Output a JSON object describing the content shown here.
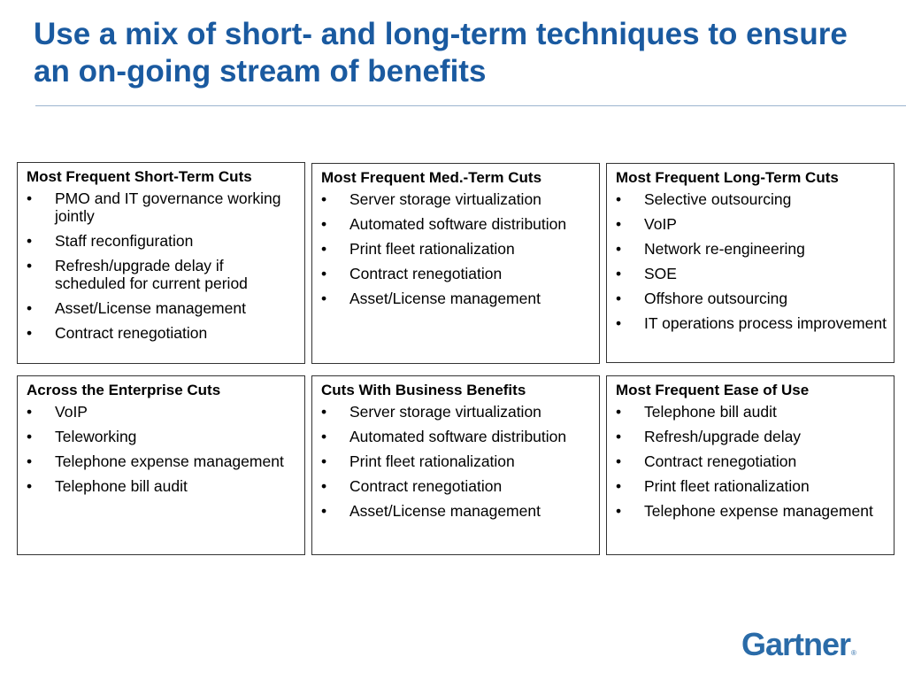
{
  "title": "Use a mix of short- and long-term techniques to ensure an on-going stream of benefits",
  "boxes": [
    {
      "heading": "Most Frequent Short-Term Cuts",
      "items": [
        "PMO and IT governance working jointly",
        "Staff reconfiguration",
        "Refresh/upgrade delay if scheduled for current period",
        "Asset/License management",
        "Contract renegotiation"
      ]
    },
    {
      "heading": "Most Frequent Med.-Term Cuts",
      "items": [
        "Server storage virtualization",
        "Automated software distribution",
        "Print fleet rationalization",
        "Contract renegotiation",
        "Asset/License management"
      ]
    },
    {
      "heading": "Most Frequent Long-Term Cuts",
      "items": [
        "Selective outsourcing",
        "VoIP",
        "Network re-engineering",
        "SOE",
        "Offshore outsourcing",
        "IT operations process improvement"
      ]
    },
    {
      "heading": "Across the Enterprise Cuts",
      "items": [
        "VoIP",
        "Teleworking",
        "Telephone expense management",
        "Telephone bill audit"
      ]
    },
    {
      "heading": "Cuts With Business Benefits",
      "items": [
        "Server storage virtualization",
        "Automated software distribution",
        "Print fleet rationalization",
        "Contract renegotiation",
        "Asset/License management"
      ]
    },
    {
      "heading": "Most Frequent Ease of Use",
      "items": [
        "Telephone bill audit",
        "Refresh/upgrade delay",
        "Contract renegotiation",
        "Print fleet rationalization",
        "Telephone expense management"
      ]
    }
  ],
  "logo": {
    "text": "Gartner",
    "mark": "®"
  }
}
